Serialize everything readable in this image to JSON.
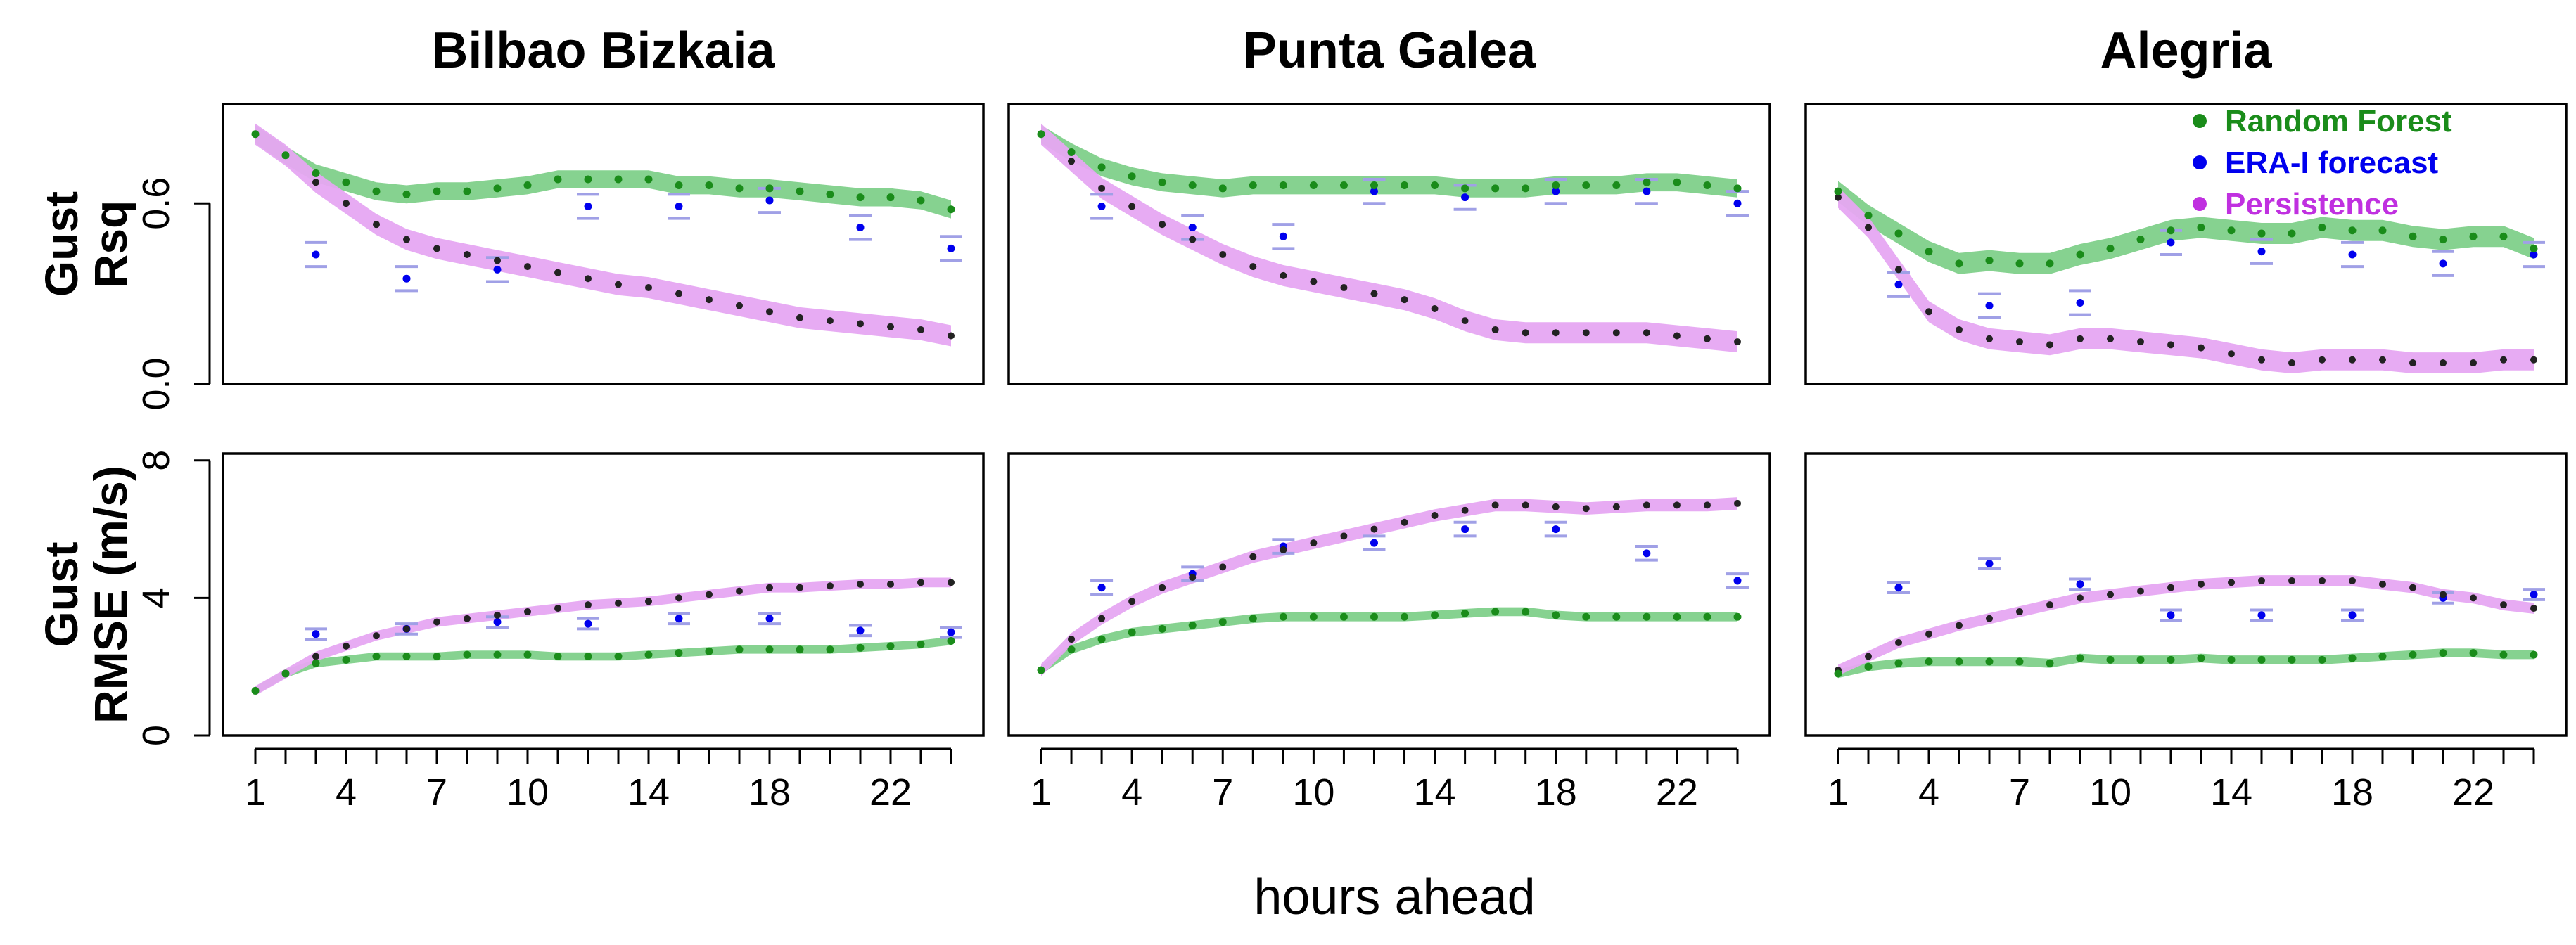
{
  "chart_data": {
    "type": "line",
    "xlabel": "hours ahead",
    "x": [
      1,
      2,
      3,
      4,
      5,
      6,
      7,
      8,
      9,
      10,
      11,
      12,
      13,
      14,
      15,
      16,
      17,
      18,
      19,
      20,
      21,
      22,
      23,
      24
    ],
    "x_ticks": [
      1,
      4,
      7,
      10,
      14,
      18,
      22
    ],
    "era_hours": [
      3,
      6,
      9,
      12,
      15,
      18,
      21,
      24
    ],
    "legend": {
      "position": "top-right",
      "entries": [
        {
          "label": "Random Forest",
          "color": "#1a8c1a"
        },
        {
          "label": "ERA-I forecast",
          "color": "#0000ee"
        },
        {
          "label": "Persistence",
          "color": "#c030e0"
        }
      ]
    },
    "colors": {
      "rf_band": "#7fd08a",
      "rf_point": "#1a8c1a",
      "pers_band": "#e6a6f2",
      "pers_point": "#222222",
      "era_point": "#0000ee",
      "era_bar": "#a0a0e6",
      "frame": "#000000"
    },
    "rows": [
      {
        "label_line1": "Gust",
        "label_line2": "Rsq",
        "ylim": [
          0,
          0.93
        ],
        "y_ticks": [
          0.0,
          0.6
        ],
        "y_tick_labels": [
          "0.0",
          "0.6"
        ]
      },
      {
        "label_line1": "Gust",
        "label_line2": "RMSE (m/s)",
        "ylim": [
          0,
          8.2
        ],
        "y_ticks": [
          0,
          4,
          8
        ],
        "y_tick_labels": [
          "0",
          "4",
          "8"
        ]
      }
    ],
    "sites": [
      {
        "name": "Bilbao Bizkaia",
        "rsq": {
          "random_forest": [
            0.83,
            0.76,
            0.7,
            0.67,
            0.64,
            0.63,
            0.64,
            0.64,
            0.65,
            0.66,
            0.68,
            0.68,
            0.68,
            0.68,
            0.66,
            0.66,
            0.65,
            0.65,
            0.64,
            0.63,
            0.62,
            0.62,
            0.61,
            0.58
          ],
          "rf_halfwidth": 0.03,
          "persistence": [
            0.83,
            0.76,
            0.67,
            0.6,
            0.53,
            0.48,
            0.45,
            0.43,
            0.41,
            0.39,
            0.37,
            0.35,
            0.33,
            0.32,
            0.3,
            0.28,
            0.26,
            0.24,
            0.22,
            0.21,
            0.2,
            0.19,
            0.18,
            0.16
          ],
          "pers_halfwidth": 0.035,
          "era": [
            0.43,
            0.35,
            0.38,
            0.59,
            0.59,
            0.61,
            0.52,
            0.45
          ],
          "era_halfwidth": 0.04
        },
        "rmse": {
          "random_forest": [
            1.3,
            1.8,
            2.1,
            2.2,
            2.3,
            2.3,
            2.3,
            2.35,
            2.35,
            2.35,
            2.3,
            2.3,
            2.3,
            2.35,
            2.4,
            2.45,
            2.5,
            2.5,
            2.5,
            2.5,
            2.55,
            2.6,
            2.65,
            2.75
          ],
          "rf_halfwidth": 0.12,
          "persistence": [
            1.3,
            1.8,
            2.3,
            2.6,
            2.9,
            3.1,
            3.3,
            3.4,
            3.5,
            3.6,
            3.7,
            3.8,
            3.85,
            3.9,
            4.0,
            4.1,
            4.2,
            4.3,
            4.3,
            4.35,
            4.4,
            4.4,
            4.45,
            4.45
          ],
          "pers_halfwidth": 0.14,
          "era": [
            2.95,
            3.1,
            3.3,
            3.25,
            3.4,
            3.4,
            3.05,
            3.0
          ],
          "era_halfwidth": 0.15
        }
      },
      {
        "name": "Punta Galea",
        "rsq": {
          "random_forest": [
            0.83,
            0.77,
            0.72,
            0.69,
            0.67,
            0.66,
            0.65,
            0.66,
            0.66,
            0.66,
            0.66,
            0.66,
            0.66,
            0.66,
            0.65,
            0.65,
            0.65,
            0.66,
            0.66,
            0.66,
            0.67,
            0.67,
            0.66,
            0.65
          ],
          "rf_halfwidth": 0.03,
          "persistence": [
            0.83,
            0.74,
            0.65,
            0.59,
            0.53,
            0.48,
            0.43,
            0.39,
            0.36,
            0.34,
            0.32,
            0.3,
            0.28,
            0.25,
            0.21,
            0.18,
            0.17,
            0.17,
            0.17,
            0.17,
            0.17,
            0.16,
            0.15,
            0.14
          ],
          "pers_halfwidth": 0.035,
          "era": [
            0.59,
            0.52,
            0.49,
            0.64,
            0.62,
            0.64,
            0.64,
            0.6
          ],
          "era_halfwidth": 0.04
        },
        "rmse": {
          "random_forest": [
            1.9,
            2.5,
            2.8,
            3.0,
            3.1,
            3.2,
            3.3,
            3.4,
            3.45,
            3.45,
            3.45,
            3.45,
            3.45,
            3.5,
            3.55,
            3.6,
            3.6,
            3.5,
            3.45,
            3.45,
            3.45,
            3.45,
            3.45,
            3.45
          ],
          "rf_halfwidth": 0.13,
          "persistence": [
            1.9,
            2.8,
            3.4,
            3.9,
            4.3,
            4.6,
            4.9,
            5.2,
            5.4,
            5.6,
            5.8,
            6.0,
            6.2,
            6.4,
            6.55,
            6.7,
            6.7,
            6.65,
            6.6,
            6.65,
            6.7,
            6.7,
            6.7,
            6.75
          ],
          "pers_halfwidth": 0.18,
          "era": [
            4.3,
            4.7,
            5.5,
            5.6,
            6.0,
            6.0,
            5.3,
            4.5
          ],
          "era_halfwidth": 0.2
        }
      },
      {
        "name": "Alegria",
        "rsq": {
          "random_forest": [
            0.64,
            0.56,
            0.5,
            0.44,
            0.4,
            0.41,
            0.4,
            0.4,
            0.43,
            0.45,
            0.48,
            0.51,
            0.52,
            0.51,
            0.5,
            0.5,
            0.52,
            0.51,
            0.51,
            0.49,
            0.48,
            0.49,
            0.49,
            0.45
          ],
          "rf_halfwidth": 0.035,
          "persistence": [
            0.62,
            0.52,
            0.38,
            0.24,
            0.18,
            0.15,
            0.14,
            0.13,
            0.15,
            0.15,
            0.14,
            0.13,
            0.12,
            0.1,
            0.08,
            0.07,
            0.08,
            0.08,
            0.08,
            0.07,
            0.07,
            0.07,
            0.08,
            0.08
          ],
          "pers_halfwidth": 0.035,
          "era": [
            0.33,
            0.26,
            0.27,
            0.47,
            0.44,
            0.43,
            0.4,
            0.43
          ],
          "era_halfwidth": 0.04
        },
        "rmse": {
          "random_forest": [
            1.8,
            2.0,
            2.1,
            2.15,
            2.15,
            2.15,
            2.15,
            2.1,
            2.25,
            2.2,
            2.2,
            2.2,
            2.25,
            2.2,
            2.2,
            2.2,
            2.2,
            2.25,
            2.3,
            2.35,
            2.4,
            2.4,
            2.35,
            2.35
          ],
          "rf_halfwidth": 0.13,
          "persistence": [
            1.9,
            2.3,
            2.7,
            2.95,
            3.2,
            3.4,
            3.6,
            3.8,
            4.0,
            4.1,
            4.2,
            4.3,
            4.4,
            4.45,
            4.5,
            4.5,
            4.5,
            4.5,
            4.4,
            4.3,
            4.1,
            4.0,
            3.8,
            3.7
          ],
          "pers_halfwidth": 0.16,
          "era": [
            4.3,
            5.0,
            4.4,
            3.5,
            3.5,
            3.5,
            4.0,
            4.1
          ],
          "era_halfwidth": 0.15
        }
      }
    ]
  }
}
